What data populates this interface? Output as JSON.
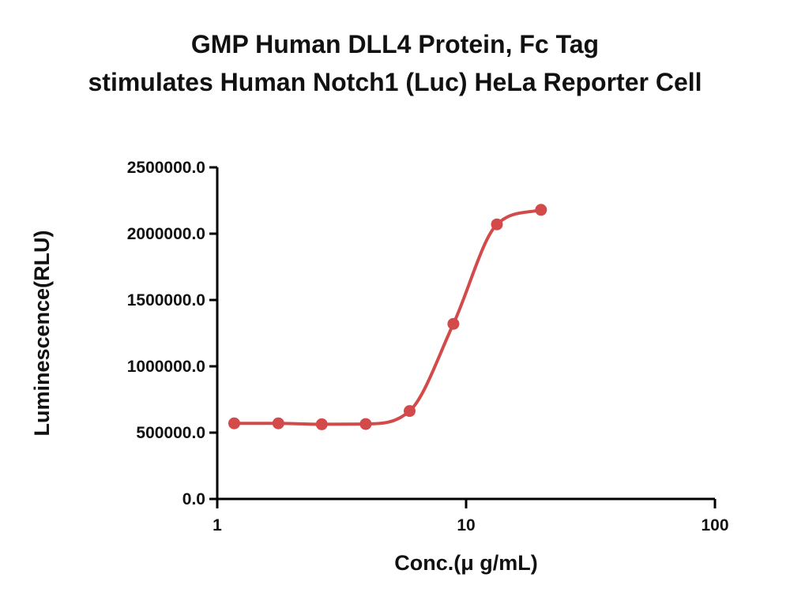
{
  "chart_data": {
    "type": "scatter",
    "title_lines": [
      "GMP Human DLL4 Protein, Fc Tag",
      "stimulates Human Notch1 (Luc) HeLa Reporter Cell"
    ],
    "xlabel": "Conc.(μ g/mL)",
    "ylabel": "Luminescence(RLU)",
    "x_scale": "log",
    "xlim": [
      1,
      100
    ],
    "x_ticks": [
      1,
      10,
      100
    ],
    "x_tick_labels": [
      "1",
      "10",
      "100"
    ],
    "ylim": [
      0,
      2500000
    ],
    "y_ticks": [
      0,
      500000,
      1000000,
      1500000,
      2000000,
      2500000
    ],
    "y_tick_labels": [
      "0.0",
      "500000.0",
      "1000000.0",
      "1500000.0",
      "2000000.0",
      "2500000.0"
    ],
    "grid": false,
    "series": [
      {
        "color": "#d24a4a",
        "points": [
          {
            "x": 1.17,
            "y": 570000
          },
          {
            "x": 1.76,
            "y": 570000
          },
          {
            "x": 2.63,
            "y": 563000
          },
          {
            "x": 3.95,
            "y": 565000
          },
          {
            "x": 5.93,
            "y": 663000
          },
          {
            "x": 8.89,
            "y": 1320000
          },
          {
            "x": 13.3,
            "y": 2070000
          },
          {
            "x": 20.0,
            "y": 2180000
          }
        ]
      }
    ]
  }
}
